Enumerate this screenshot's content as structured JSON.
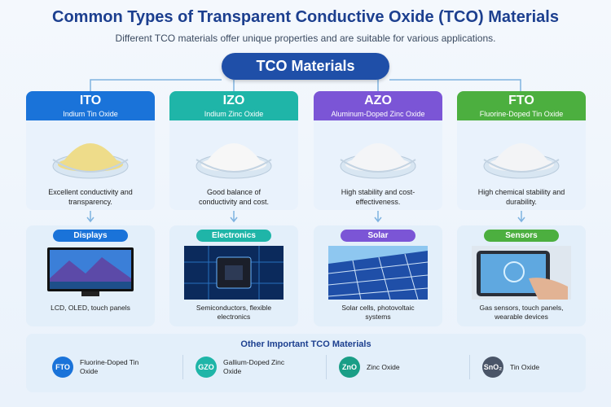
{
  "header": {
    "title": "Common Types of Transparent Conductive Oxide (TCO) Materials",
    "subtitle": "Different TCO materials offer unique properties and are suitable for various applications."
  },
  "root": {
    "label": "TCO Materials"
  },
  "materials": [
    {
      "abbr": "ITO",
      "name": "Indium Tin Oxide",
      "description": "Excellent conductivity and transparency.",
      "application": "Displays",
      "application_description": "LCD, OLED, touch panels"
    },
    {
      "abbr": "IZO",
      "name": "Indium Zinc Oxide",
      "description": "Good balance of conductivity and cost.",
      "application": "Electronics",
      "application_description": "Semiconductors, flexible electronics"
    },
    {
      "abbr": "AZO",
      "name": "Aluminum-Doped Zinc Oxide",
      "description": "High stability and cost-effectiveness.",
      "application": "Solar",
      "application_description": "Solar cells, photovoltaic systems"
    },
    {
      "abbr": "FTO",
      "name": "Fluorine-Doped Tin Oxide",
      "description": "High chemical stability and durability.",
      "application": "Sensors",
      "application_description": "Gas sensors, touch panels, wearable devices"
    }
  ],
  "other": {
    "title": "Other Important TCO Materials",
    "items": [
      {
        "badge": "FTO",
        "name": "Fluorine-Doped Tin Oxide"
      },
      {
        "badge": "GZO",
        "name": "Gallium-Doped Zinc Oxide"
      },
      {
        "badge": "ZnO",
        "name": "Zinc Oxide"
      },
      {
        "badge": "SnO₂",
        "name": "Tin Oxide"
      }
    ]
  }
}
